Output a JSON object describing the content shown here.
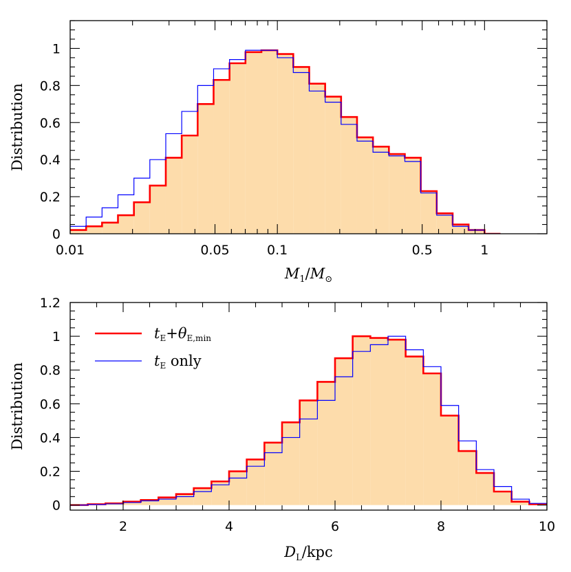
{
  "chart_data": [
    {
      "type": "histogram",
      "xscale": "log",
      "xlim": [
        0.01,
        2.0
      ],
      "ylim": [
        0,
        1.15
      ],
      "ylabel": "Distribution",
      "xlabel": {
        "prefix": "M",
        "sub": "1",
        "mid": "/M",
        "sub2": "⊙"
      },
      "x_ticks": [
        {
          "value": 0.01,
          "label": "0.01"
        },
        {
          "value": 0.05,
          "label": "0.05"
        },
        {
          "value": 0.1,
          "label": "0.1"
        },
        {
          "value": 0.5,
          "label": "0.5"
        },
        {
          "value": 1,
          "label": "1"
        }
      ],
      "x_minor_ticks": [
        0.02,
        0.03,
        0.04,
        0.06,
        0.07,
        0.08,
        0.09,
        0.2,
        0.3,
        0.4,
        0.6,
        0.7,
        0.8,
        0.9,
        2
      ],
      "y_ticks": [
        {
          "value": 0,
          "label": "0"
        },
        {
          "value": 0.2,
          "label": "0.2"
        },
        {
          "value": 0.4,
          "label": "0.4"
        },
        {
          "value": 0.6,
          "label": "0.6"
        },
        {
          "value": 0.8,
          "label": "0.8"
        },
        {
          "value": 1,
          "label": "1"
        }
      ],
      "y_minor_step": 0.05,
      "bin_edges": [
        0.01,
        0.01194,
        0.01425,
        0.01701,
        0.02031,
        0.02424,
        0.02894,
        0.03455,
        0.04124,
        0.04923,
        0.05877,
        0.07016,
        0.08375,
        0.09998,
        0.11935,
        0.14248,
        0.17009,
        0.20305,
        0.24239,
        0.28936,
        0.34543,
        0.41237,
        0.49227,
        0.58766,
        0.70153,
        0.83747,
        0.99974,
        1.19346,
        1.42472,
        1.70079,
        2.0
      ],
      "series": [
        {
          "key": "te_theta",
          "color": "#ff0000",
          "filled": true,
          "fill": "#fddcab",
          "stroke_width": 2.6,
          "values": [
            0.02,
            0.04,
            0.06,
            0.1,
            0.17,
            0.26,
            0.41,
            0.53,
            0.7,
            0.83,
            0.92,
            0.98,
            0.99,
            0.97,
            0.9,
            0.81,
            0.74,
            0.63,
            0.52,
            0.47,
            0.43,
            0.41,
            0.23,
            0.11,
            0.05,
            0.02,
            0.0
          ]
        },
        {
          "key": "te_only",
          "color": "#0000ff",
          "filled": false,
          "stroke_width": 1.2,
          "values": [
            0.04,
            0.09,
            0.14,
            0.21,
            0.3,
            0.4,
            0.54,
            0.66,
            0.8,
            0.89,
            0.94,
            0.99,
            0.99,
            0.95,
            0.87,
            0.77,
            0.71,
            0.59,
            0.5,
            0.44,
            0.42,
            0.39,
            0.22,
            0.1,
            0.04,
            0.02,
            0.0
          ]
        }
      ]
    },
    {
      "type": "histogram",
      "xscale": "linear",
      "xlim": [
        1,
        10
      ],
      "ylim": [
        -0.03,
        1.2
      ],
      "ylabel": "Distribution",
      "xlabel": {
        "prefix": "D",
        "sub": "L",
        "mid": "/kpc",
        "sub2": ""
      },
      "x_ticks": [
        {
          "value": 2,
          "label": "2"
        },
        {
          "value": 4,
          "label": "4"
        },
        {
          "value": 6,
          "label": "6"
        },
        {
          "value": 8,
          "label": "8"
        },
        {
          "value": 10,
          "label": "10"
        }
      ],
      "x_minor_step": 0.5,
      "y_ticks": [
        {
          "value": 0,
          "label": "0"
        },
        {
          "value": 0.2,
          "label": "0.2"
        },
        {
          "value": 0.4,
          "label": "0.4"
        },
        {
          "value": 0.6,
          "label": "0.6"
        },
        {
          "value": 0.8,
          "label": "0.8"
        },
        {
          "value": 1,
          "label": "1"
        },
        {
          "value": 1.2,
          "label": "1.2"
        }
      ],
      "y_minor_step": 0.05,
      "bin_edges": [
        1.0,
        1.333,
        1.667,
        2.0,
        2.333,
        2.667,
        3.0,
        3.333,
        3.667,
        4.0,
        4.333,
        4.667,
        5.0,
        5.333,
        5.667,
        6.0,
        6.333,
        6.667,
        7.0,
        7.333,
        7.667,
        8.0,
        8.333,
        8.667,
        9.0,
        9.333,
        9.667,
        10.0
      ],
      "series": [
        {
          "key": "te_theta",
          "color": "#ff0000",
          "filled": true,
          "fill": "#fddcab",
          "stroke_width": 2.6,
          "values": [
            0.0,
            0.005,
            0.01,
            0.02,
            0.03,
            0.045,
            0.065,
            0.1,
            0.14,
            0.2,
            0.27,
            0.37,
            0.49,
            0.62,
            0.73,
            0.87,
            1.0,
            0.99,
            0.98,
            0.88,
            0.78,
            0.53,
            0.32,
            0.19,
            0.08,
            0.02,
            0.005
          ]
        },
        {
          "key": "te_only",
          "color": "#0000ff",
          "filled": false,
          "stroke_width": 1.2,
          "values": [
            0.0,
            0.003,
            0.007,
            0.015,
            0.025,
            0.035,
            0.05,
            0.08,
            0.12,
            0.16,
            0.23,
            0.31,
            0.4,
            0.51,
            0.62,
            0.76,
            0.91,
            0.95,
            1.0,
            0.92,
            0.82,
            0.59,
            0.38,
            0.21,
            0.11,
            0.035,
            0.01
          ]
        }
      ],
      "legend": {
        "position": "top-left",
        "entries": [
          {
            "key": "te_theta",
            "color": "#ff0000",
            "italic": "t",
            "sub": "E",
            "plus": "+",
            "italic2": "θ",
            "sub2": "E,min",
            "rest": ""
          },
          {
            "key": "te_only",
            "color": "#0000ff",
            "italic": "t",
            "sub": "E",
            "plus": "",
            "italic2": "",
            "sub2": "",
            "rest": " only"
          }
        ]
      }
    }
  ]
}
